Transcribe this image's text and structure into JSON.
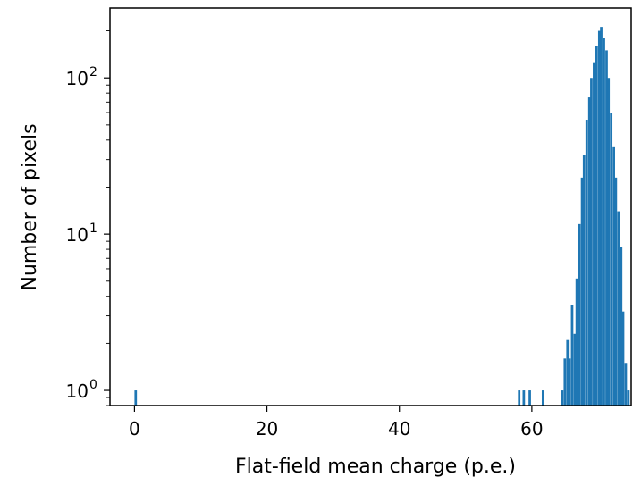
{
  "chart_data": {
    "type": "bar",
    "title": "",
    "xlabel": "Flat-field mean charge (p.e.)",
    "ylabel": "Number of pixels",
    "xlim": [
      -3.7,
      75.0
    ],
    "ylim": [
      0.8,
      280
    ],
    "yscale": "log",
    "grid": false,
    "bar_color": "#1f77b4",
    "x_ticks": [
      {
        "value": 0,
        "label": "0"
      },
      {
        "value": 20,
        "label": "20"
      },
      {
        "value": 40,
        "label": "40"
      },
      {
        "value": 60,
        "label": "60"
      }
    ],
    "y_ticks": [
      {
        "value": 1,
        "base": "10",
        "exp": "0"
      },
      {
        "value": 10,
        "base": "10",
        "exp": "1"
      },
      {
        "value": 100,
        "base": "10",
        "exp": "2"
      }
    ],
    "bin_width": 0.37,
    "bins": [
      {
        "x": 0.0,
        "count": 1
      },
      {
        "x": 57.9,
        "count": 1
      },
      {
        "x": 58.6,
        "count": 1
      },
      {
        "x": 59.5,
        "count": 1
      },
      {
        "x": 61.5,
        "count": 1
      },
      {
        "x": 64.4,
        "count": 1
      },
      {
        "x": 64.8,
        "count": 1.6
      },
      {
        "x": 65.2,
        "count": 2.1
      },
      {
        "x": 65.5,
        "count": 1.6
      },
      {
        "x": 65.9,
        "count": 3.5
      },
      {
        "x": 66.3,
        "count": 2.3
      },
      {
        "x": 66.6,
        "count": 5.2
      },
      {
        "x": 67.0,
        "count": 11.6
      },
      {
        "x": 67.4,
        "count": 23
      },
      {
        "x": 67.7,
        "count": 32
      },
      {
        "x": 68.1,
        "count": 54
      },
      {
        "x": 68.5,
        "count": 75
      },
      {
        "x": 68.8,
        "count": 100
      },
      {
        "x": 69.2,
        "count": 126
      },
      {
        "x": 69.6,
        "count": 160
      },
      {
        "x": 70.0,
        "count": 200
      },
      {
        "x": 70.3,
        "count": 212
      },
      {
        "x": 70.7,
        "count": 180
      },
      {
        "x": 71.1,
        "count": 150
      },
      {
        "x": 71.4,
        "count": 100
      },
      {
        "x": 71.8,
        "count": 60
      },
      {
        "x": 72.2,
        "count": 36
      },
      {
        "x": 72.5,
        "count": 23
      },
      {
        "x": 72.9,
        "count": 14
      },
      {
        "x": 73.3,
        "count": 8.3
      },
      {
        "x": 73.6,
        "count": 3.2
      },
      {
        "x": 74.0,
        "count": 1.5
      },
      {
        "x": 74.4,
        "count": 1
      }
    ]
  }
}
